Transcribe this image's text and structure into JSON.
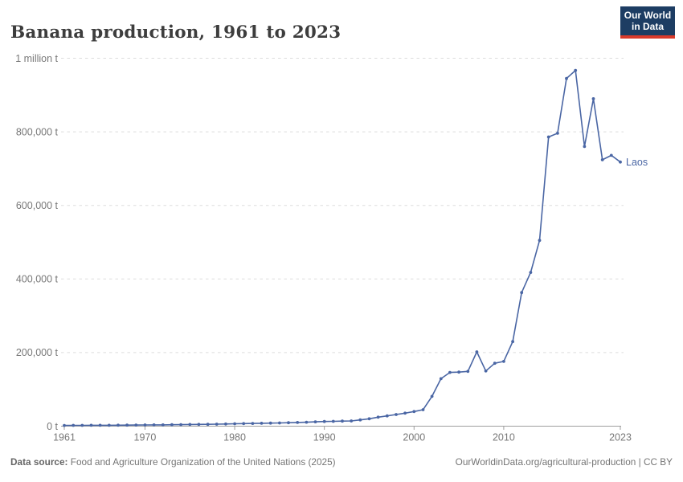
{
  "header": {
    "title": "Banana production, 1961 to 2023",
    "logo": {
      "line1": "Our World",
      "line2": "in Data"
    }
  },
  "footer": {
    "source_label": "Data source:",
    "source_text": " Food and Agriculture Organization of the United Nations (2025)",
    "link_text": "OurWorldinData.org/agricultural-production | CC BY"
  },
  "colors": {
    "line": "#4a66a4",
    "end_label": "#4a66a4",
    "grid": "#dddddd",
    "axis": "#9e9e9e",
    "tick_text": "#787878",
    "title": "#3d3d3d",
    "footer": "#757575",
    "logo_bg": "#1d3d63",
    "logo_red": "#d93a2b"
  },
  "chart_data": {
    "type": "line",
    "title": "Banana production, 1961 to 2023",
    "xlabel": "",
    "ylabel": "",
    "xlim": [
      1961,
      2023
    ],
    "ylim": [
      0,
      1000000
    ],
    "grid": "dashed-horizontal",
    "legend_position": "end-of-line-label",
    "x_ticks": [
      1961,
      1970,
      1980,
      1990,
      2000,
      2010,
      2023
    ],
    "y_ticks": [
      {
        "value": 0,
        "label": "0 t"
      },
      {
        "value": 200000,
        "label": "200,000 t"
      },
      {
        "value": 400000,
        "label": "400,000 t"
      },
      {
        "value": 600000,
        "label": "600,000 t"
      },
      {
        "value": 800000,
        "label": "800,000 t"
      },
      {
        "value": 1000000,
        "label": "1 million t"
      }
    ],
    "series": [
      {
        "name": "Laos",
        "color": "#4a66a4",
        "x": [
          1961,
          1962,
          1963,
          1964,
          1965,
          1966,
          1967,
          1968,
          1969,
          1970,
          1971,
          1972,
          1973,
          1974,
          1975,
          1976,
          1977,
          1978,
          1979,
          1980,
          1981,
          1982,
          1983,
          1984,
          1985,
          1986,
          1987,
          1988,
          1989,
          1990,
          1991,
          1992,
          1993,
          1994,
          1995,
          1996,
          1997,
          1998,
          1999,
          2000,
          2001,
          2002,
          2003,
          2004,
          2005,
          2006,
          2007,
          2008,
          2009,
          2010,
          2011,
          2012,
          2013,
          2014,
          2015,
          2016,
          2017,
          2018,
          2019,
          2020,
          2021,
          2022,
          2023
        ],
        "values": [
          2000,
          2100,
          2200,
          2300,
          2400,
          2500,
          2600,
          2800,
          3000,
          3200,
          3400,
          3600,
          3900,
          4200,
          4500,
          4800,
          5100,
          5400,
          5800,
          6500,
          7000,
          7400,
          7800,
          8200,
          8800,
          9400,
          10000,
          10800,
          11700,
          12700,
          13200,
          13700,
          14200,
          17000,
          20000,
          24400,
          27900,
          31700,
          35400,
          39700,
          44800,
          81000,
          129000,
          146000,
          147000,
          149000,
          202000,
          150000,
          171000,
          176000,
          230000,
          363000,
          418000,
          505000,
          786000,
          796000,
          945000,
          967000,
          760000,
          890000,
          724000,
          736000,
          718000
        ]
      }
    ]
  }
}
